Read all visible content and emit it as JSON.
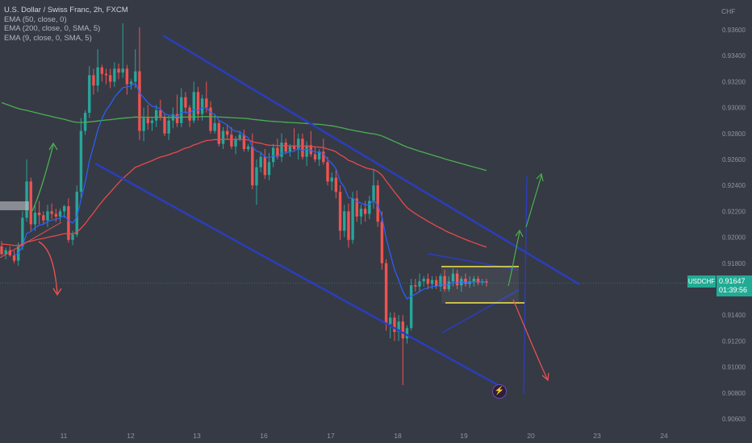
{
  "legend": {
    "title": "U.S. Dollar / Swiss Franc, 2h, FXCM",
    "indicators": [
      "EMA (50, close, 0)",
      "EMA (200, close, 0, SMA, 5)",
      "EMA (9, close, 0, SMA, 5)"
    ]
  },
  "currency_label": "CHF",
  "symbol_tag": "USDCHF",
  "price_tag": {
    "price": "0.91647",
    "countdown": "01:39:56"
  },
  "event_icon": "lightning-icon",
  "colors": {
    "up": "#26a69a",
    "down": "#ef5350",
    "ema50": "#e64a4a",
    "ema200": "#4caf50",
    "ema9": "#2962ff",
    "channel": "#2a3ec0",
    "zone": "#f5e74a",
    "background": "#363a45"
  },
  "chart_data": {
    "type": "candlestick",
    "symbol": "USDCHF",
    "timeframe": "2h",
    "x_ticks": [
      "11",
      "12",
      "13",
      "16",
      "17",
      "18",
      "19",
      "20",
      "23",
      "24"
    ],
    "y_ticks": [
      "0.93600",
      "0.93400",
      "0.93200",
      "0.93000",
      "0.92800",
      "0.92600",
      "0.92400",
      "0.92200",
      "0.92000",
      "0.91800",
      "0.91600",
      "0.91400",
      "0.91200",
      "0.91000",
      "0.90800",
      "0.90600"
    ],
    "ylim": [
      0.9055,
      0.9378
    ],
    "last_price": 0.91647,
    "candles": [
      [
        0.9193,
        0.9197,
        0.9186,
        0.9187
      ],
      [
        0.9187,
        0.9192,
        0.9183,
        0.919
      ],
      [
        0.919,
        0.9193,
        0.9185,
        0.9186
      ],
      [
        0.9186,
        0.919,
        0.918,
        0.9182
      ],
      [
        0.9182,
        0.9196,
        0.9178,
        0.9193
      ],
      [
        0.9193,
        0.922,
        0.919,
        0.9215
      ],
      [
        0.9215,
        0.926,
        0.9212,
        0.9243
      ],
      [
        0.9243,
        0.9246,
        0.9205,
        0.921
      ],
      [
        0.921,
        0.9225,
        0.9205,
        0.9219
      ],
      [
        0.9219,
        0.9228,
        0.921,
        0.9217
      ],
      [
        0.9217,
        0.922,
        0.921,
        0.9213
      ],
      [
        0.9213,
        0.9225,
        0.9208,
        0.922
      ],
      [
        0.922,
        0.9226,
        0.9214,
        0.9218
      ],
      [
        0.9218,
        0.9222,
        0.9212,
        0.9216
      ],
      [
        0.9216,
        0.9222,
        0.9212,
        0.922
      ],
      [
        0.922,
        0.9225,
        0.9215,
        0.9224
      ],
      [
        0.9224,
        0.923,
        0.9196,
        0.9198
      ],
      [
        0.9198,
        0.9205,
        0.9194,
        0.9202
      ],
      [
        0.9202,
        0.924,
        0.92,
        0.9235
      ],
      [
        0.9235,
        0.9292,
        0.923,
        0.9282
      ],
      [
        0.9282,
        0.9298,
        0.9279,
        0.9296
      ],
      [
        0.9296,
        0.9332,
        0.9292,
        0.9325
      ],
      [
        0.9325,
        0.933,
        0.931,
        0.9317
      ],
      [
        0.9317,
        0.9345,
        0.9312,
        0.9331
      ],
      [
        0.9331,
        0.9333,
        0.932,
        0.9326
      ],
      [
        0.9326,
        0.933,
        0.9318,
        0.9325
      ],
      [
        0.9325,
        0.933,
        0.9315,
        0.932
      ],
      [
        0.932,
        0.9335,
        0.9316,
        0.933
      ],
      [
        0.933,
        0.9334,
        0.9322,
        0.9327
      ],
      [
        0.9327,
        0.9365,
        0.9323,
        0.933
      ],
      [
        0.933,
        0.9333,
        0.931,
        0.9318
      ],
      [
        0.9318,
        0.9322,
        0.9314,
        0.932
      ],
      [
        0.932,
        0.9345,
        0.9315,
        0.9328
      ],
      [
        0.9328,
        0.9362,
        0.9275,
        0.9282
      ],
      [
        0.9282,
        0.93,
        0.9274,
        0.9292
      ],
      [
        0.9292,
        0.9302,
        0.9283,
        0.9288
      ],
      [
        0.9288,
        0.9292,
        0.9282,
        0.929
      ],
      [
        0.929,
        0.9302,
        0.9285,
        0.9298
      ],
      [
        0.9298,
        0.9306,
        0.929,
        0.9293
      ],
      [
        0.9293,
        0.9296,
        0.9278,
        0.928
      ],
      [
        0.928,
        0.9294,
        0.9275,
        0.929
      ],
      [
        0.929,
        0.93,
        0.9284,
        0.9295
      ],
      [
        0.9295,
        0.931,
        0.9285,
        0.9288
      ],
      [
        0.9288,
        0.9315,
        0.9285,
        0.9308
      ],
      [
        0.9308,
        0.9312,
        0.9295,
        0.93
      ],
      [
        0.93,
        0.9302,
        0.9285,
        0.929
      ],
      [
        0.929,
        0.932,
        0.9288,
        0.9312
      ],
      [
        0.9312,
        0.9316,
        0.929,
        0.9295
      ],
      [
        0.9295,
        0.931,
        0.929,
        0.9307
      ],
      [
        0.9307,
        0.932,
        0.9296,
        0.93
      ],
      [
        0.93,
        0.9305,
        0.928,
        0.9282
      ],
      [
        0.9282,
        0.9295,
        0.928,
        0.9288
      ],
      [
        0.9288,
        0.929,
        0.927,
        0.9272
      ],
      [
        0.9272,
        0.9285,
        0.9268,
        0.9282
      ],
      [
        0.9282,
        0.9287,
        0.9276,
        0.9279
      ],
      [
        0.9279,
        0.9285,
        0.9268,
        0.927
      ],
      [
        0.927,
        0.9278,
        0.9264,
        0.9276
      ],
      [
        0.9276,
        0.9282,
        0.9274,
        0.9279
      ],
      [
        0.9279,
        0.9283,
        0.9266,
        0.9268
      ],
      [
        0.9268,
        0.9272,
        0.9266,
        0.927
      ],
      [
        0.927,
        0.928,
        0.9237,
        0.924
      ],
      [
        0.924,
        0.926,
        0.9225,
        0.9254
      ],
      [
        0.9254,
        0.9266,
        0.925,
        0.9262
      ],
      [
        0.9262,
        0.9268,
        0.9245,
        0.9248
      ],
      [
        0.9248,
        0.9265,
        0.9244,
        0.9258
      ],
      [
        0.9258,
        0.9272,
        0.9254,
        0.9269
      ],
      [
        0.9269,
        0.9276,
        0.926,
        0.9262
      ],
      [
        0.9262,
        0.928,
        0.9258,
        0.9273
      ],
      [
        0.9273,
        0.9276,
        0.9264,
        0.9266
      ],
      [
        0.9266,
        0.9272,
        0.9262,
        0.927
      ],
      [
        0.927,
        0.9284,
        0.9266,
        0.9268
      ],
      [
        0.9268,
        0.928,
        0.926,
        0.9276
      ],
      [
        0.9276,
        0.928,
        0.926,
        0.9262
      ],
      [
        0.9262,
        0.9274,
        0.9255,
        0.9271
      ],
      [
        0.9271,
        0.9282,
        0.9262,
        0.9264
      ],
      [
        0.9264,
        0.927,
        0.9258,
        0.926
      ],
      [
        0.926,
        0.9268,
        0.9255,
        0.9266
      ],
      [
        0.9266,
        0.9276,
        0.9256,
        0.9258
      ],
      [
        0.9258,
        0.9262,
        0.924,
        0.9243
      ],
      [
        0.9243,
        0.925,
        0.9236,
        0.9246
      ],
      [
        0.9246,
        0.9252,
        0.923,
        0.9235
      ],
      [
        0.9235,
        0.924,
        0.9198,
        0.9205
      ],
      [
        0.9205,
        0.9225,
        0.92,
        0.922
      ],
      [
        0.922,
        0.9226,
        0.9192,
        0.9198
      ],
      [
        0.9198,
        0.9235,
        0.9195,
        0.923
      ],
      [
        0.923,
        0.9236,
        0.9212,
        0.9216
      ],
      [
        0.9216,
        0.9225,
        0.921,
        0.9222
      ],
      [
        0.9222,
        0.9228,
        0.9212,
        0.9218
      ],
      [
        0.9218,
        0.9232,
        0.9214,
        0.9228
      ],
      [
        0.9228,
        0.9252,
        0.9222,
        0.924
      ],
      [
        0.924,
        0.9244,
        0.9208,
        0.9212
      ],
      [
        0.9212,
        0.922,
        0.9175,
        0.918
      ],
      [
        0.918,
        0.9183,
        0.9128,
        0.9133
      ],
      [
        0.9133,
        0.9142,
        0.9122,
        0.9138
      ],
      [
        0.9138,
        0.9142,
        0.912,
        0.9127
      ],
      [
        0.9127,
        0.914,
        0.912,
        0.9135
      ],
      [
        0.9135,
        0.914,
        0.9086,
        0.9122
      ],
      [
        0.9122,
        0.9132,
        0.9118,
        0.913
      ],
      [
        0.913,
        0.9168,
        0.9128,
        0.9163
      ],
      [
        0.9163,
        0.9168,
        0.9158,
        0.9162
      ],
      [
        0.9162,
        0.9172,
        0.9158,
        0.9166
      ],
      [
        0.9166,
        0.917,
        0.9162,
        0.9168
      ],
      [
        0.9168,
        0.9172,
        0.916,
        0.9164
      ],
      [
        0.9164,
        0.917,
        0.916,
        0.9167
      ],
      [
        0.9167,
        0.917,
        0.916,
        0.9162
      ],
      [
        0.9162,
        0.9172,
        0.9158,
        0.917
      ],
      [
        0.917,
        0.9175,
        0.9158,
        0.916
      ],
      [
        0.916,
        0.917,
        0.9158,
        0.9166
      ],
      [
        0.9166,
        0.9176,
        0.9162,
        0.9172
      ],
      [
        0.9172,
        0.9175,
        0.916,
        0.9163
      ],
      [
        0.9163,
        0.917,
        0.9158,
        0.9168
      ],
      [
        0.9168,
        0.9172,
        0.9162,
        0.9164
      ],
      [
        0.9164,
        0.917,
        0.9161,
        0.9166
      ],
      [
        0.9166,
        0.917,
        0.9162,
        0.9168
      ],
      [
        0.9168,
        0.917,
        0.9163,
        0.9165
      ],
      [
        0.9165,
        0.9168,
        0.9163,
        0.9166
      ],
      [
        0.9166,
        0.9168,
        0.9162,
        0.9165
      ]
    ]
  }
}
